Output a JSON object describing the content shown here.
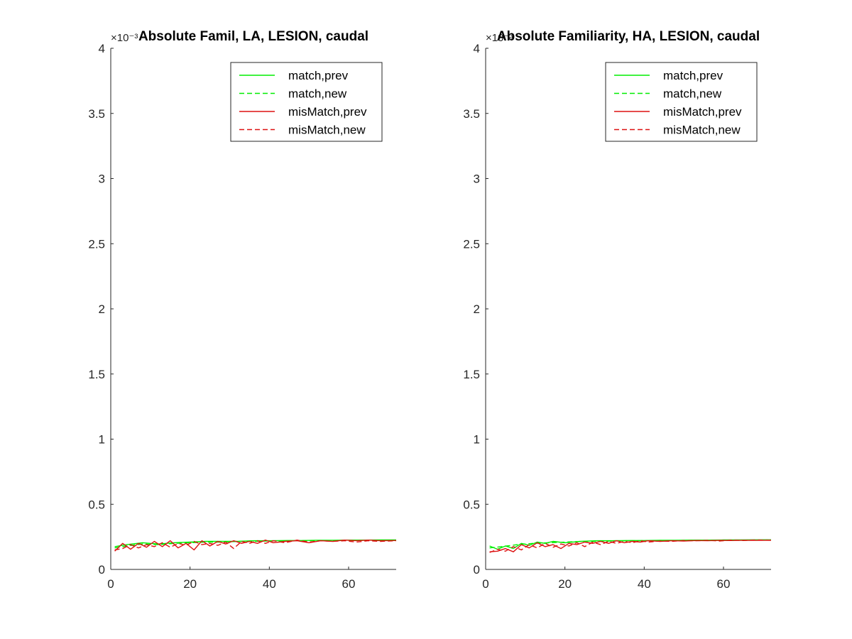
{
  "colors": {
    "green": "#00ee00",
    "red": "#dd1111",
    "axis": "#262626"
  },
  "chart_data": [
    {
      "type": "line",
      "title": "Absolute Famil, LA, LESION, caudal",
      "exponent_label": "×10⁻³",
      "xlim": [
        0,
        72
      ],
      "ylim": [
        0,
        4
      ],
      "xticks": [
        "0",
        "20",
        "40",
        "60"
      ],
      "yticks": [
        "0",
        "0.5",
        "1",
        "1.5",
        "2",
        "2.5",
        "3",
        "3.5",
        "4"
      ],
      "legend_position": "top-right",
      "legend": [
        "match,prev",
        "match,new",
        "misMatch,prev",
        "misMatch,new"
      ],
      "series": [
        {
          "name": "match,prev",
          "color": "green",
          "style": "solid",
          "x": [
            1,
            4,
            8,
            12,
            16,
            20,
            24,
            28,
            32,
            36,
            40,
            44,
            48,
            52,
            56,
            60,
            64,
            68,
            72
          ],
          "y": [
            0.175,
            0.19,
            0.205,
            0.195,
            0.205,
            0.21,
            0.215,
            0.215,
            0.215,
            0.22,
            0.22,
            0.222,
            0.222,
            0.224,
            0.224,
            0.225,
            0.225,
            0.226,
            0.226
          ]
        },
        {
          "name": "match,new",
          "color": "green",
          "style": "dashed",
          "x": [
            1,
            4,
            8,
            12,
            16,
            20,
            24,
            28,
            32,
            36,
            40,
            44,
            48,
            52,
            56,
            60,
            64,
            68,
            72
          ],
          "y": [
            0.165,
            0.18,
            0.195,
            0.19,
            0.2,
            0.205,
            0.21,
            0.21,
            0.215,
            0.215,
            0.218,
            0.22,
            0.22,
            0.222,
            0.222,
            0.223,
            0.224,
            0.224,
            0.225
          ]
        },
        {
          "name": "misMatch,prev",
          "color": "red",
          "style": "solid",
          "x": [
            1,
            3,
            5,
            7,
            9,
            11,
            13,
            15,
            17,
            19,
            21,
            23,
            25,
            27,
            29,
            31,
            33,
            35,
            37,
            39,
            41,
            44,
            47,
            50,
            53,
            56,
            59,
            62,
            65,
            68,
            72
          ],
          "y": [
            0.14,
            0.2,
            0.155,
            0.2,
            0.17,
            0.215,
            0.175,
            0.22,
            0.165,
            0.2,
            0.15,
            0.22,
            0.18,
            0.215,
            0.195,
            0.22,
            0.2,
            0.215,
            0.2,
            0.225,
            0.205,
            0.215,
            0.22,
            0.205,
            0.22,
            0.215,
            0.225,
            0.22,
            0.225,
            0.22,
            0.222
          ]
        },
        {
          "name": "misMatch,new",
          "color": "red",
          "style": "dashed",
          "x": [
            1,
            3,
            5,
            7,
            9,
            11,
            13,
            15,
            17,
            19,
            21,
            23,
            25,
            27,
            29,
            31,
            33,
            35,
            37,
            39,
            41,
            44,
            47,
            50,
            53,
            56,
            59,
            62,
            65,
            68,
            72
          ],
          "y": [
            0.15,
            0.16,
            0.19,
            0.165,
            0.19,
            0.175,
            0.205,
            0.17,
            0.2,
            0.185,
            0.215,
            0.19,
            0.2,
            0.185,
            0.21,
            0.16,
            0.215,
            0.2,
            0.22,
            0.2,
            0.22,
            0.205,
            0.225,
            0.21,
            0.22,
            0.215,
            0.22,
            0.21,
            0.22,
            0.215,
            0.22
          ]
        }
      ]
    },
    {
      "type": "line",
      "title": "Absolute Familiarity, HA, LESION, caudal",
      "exponent_label": "×10⁻³",
      "xlim": [
        0,
        72
      ],
      "ylim": [
        0,
        4
      ],
      "xticks": [
        "0",
        "20",
        "40",
        "60"
      ],
      "yticks": [
        "0",
        "0.5",
        "1",
        "1.5",
        "2",
        "2.5",
        "3",
        "3.5",
        "4"
      ],
      "legend_position": "top-right",
      "legend": [
        "match,prev",
        "match,new",
        "misMatch,prev",
        "misMatch,new"
      ],
      "series": [
        {
          "name": "match,prev",
          "color": "green",
          "style": "solid",
          "x": [
            1,
            3,
            5,
            7,
            9,
            11,
            13,
            15,
            17,
            20,
            24,
            28,
            32,
            36,
            40,
            44,
            48,
            52,
            56,
            60,
            64,
            68,
            72
          ],
          "y": [
            0.18,
            0.155,
            0.18,
            0.16,
            0.2,
            0.185,
            0.21,
            0.2,
            0.215,
            0.205,
            0.215,
            0.22,
            0.22,
            0.222,
            0.222,
            0.224,
            0.224,
            0.225,
            0.225,
            0.226,
            0.226,
            0.227,
            0.227
          ]
        },
        {
          "name": "match,new",
          "color": "green",
          "style": "dashed",
          "x": [
            1,
            4,
            8,
            12,
            16,
            20,
            24,
            28,
            32,
            36,
            40,
            44,
            48,
            52,
            56,
            60,
            64,
            68,
            72
          ],
          "y": [
            0.165,
            0.175,
            0.19,
            0.2,
            0.205,
            0.21,
            0.215,
            0.215,
            0.218,
            0.22,
            0.22,
            0.222,
            0.222,
            0.223,
            0.224,
            0.224,
            0.225,
            0.225,
            0.226
          ]
        },
        {
          "name": "misMatch,prev",
          "color": "red",
          "style": "solid",
          "x": [
            1,
            3,
            5,
            7,
            9,
            11,
            13,
            15,
            17,
            19,
            21,
            23,
            25,
            27,
            29,
            31,
            33,
            35,
            37,
            39,
            41,
            44,
            47,
            50,
            53,
            56,
            59,
            62,
            65,
            68,
            72
          ],
          "y": [
            0.135,
            0.14,
            0.16,
            0.135,
            0.19,
            0.165,
            0.205,
            0.175,
            0.19,
            0.16,
            0.2,
            0.19,
            0.21,
            0.2,
            0.215,
            0.2,
            0.22,
            0.205,
            0.215,
            0.21,
            0.22,
            0.215,
            0.22,
            0.218,
            0.222,
            0.22,
            0.223,
            0.222,
            0.224,
            0.223,
            0.224
          ]
        },
        {
          "name": "misMatch,new",
          "color": "red",
          "style": "dashed",
          "x": [
            1,
            3,
            5,
            7,
            9,
            11,
            13,
            15,
            17,
            19,
            21,
            23,
            25,
            27,
            29,
            31,
            33,
            35,
            37,
            39,
            41,
            44,
            47,
            50,
            53,
            56,
            59,
            62,
            65,
            68,
            72
          ],
          "y": [
            0.13,
            0.155,
            0.14,
            0.175,
            0.15,
            0.19,
            0.165,
            0.2,
            0.17,
            0.195,
            0.18,
            0.205,
            0.175,
            0.21,
            0.19,
            0.215,
            0.2,
            0.215,
            0.205,
            0.22,
            0.21,
            0.218,
            0.215,
            0.222,
            0.22,
            0.223,
            0.218,
            0.225,
            0.222,
            0.226,
            0.224
          ]
        }
      ]
    }
  ]
}
